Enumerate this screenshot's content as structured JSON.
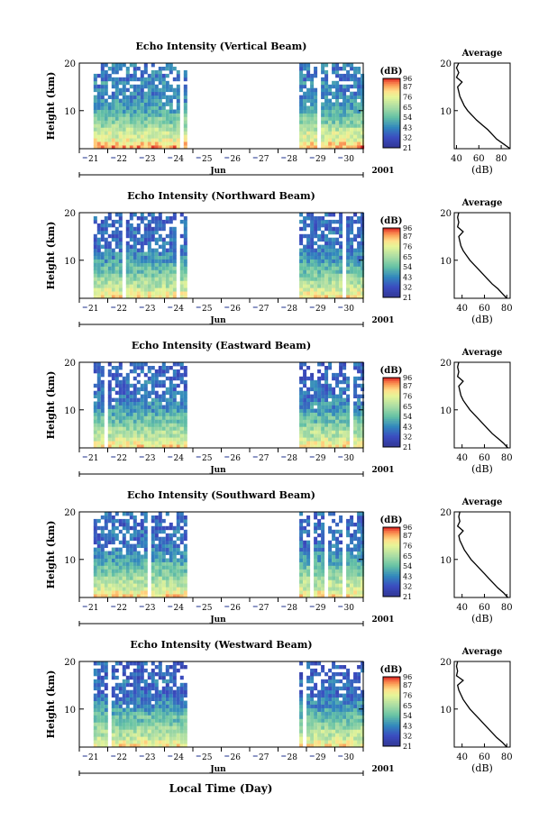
{
  "figure": {
    "xlabel": "Local Time (Day)",
    "month_label": "Jun",
    "year_label": "2001",
    "day_labels": [
      "21",
      "22",
      "23",
      "24",
      "25",
      "26",
      "27",
      "28",
      "29",
      "30"
    ],
    "height_ticks": [
      10,
      20
    ],
    "colorbar_unit": "(dB)",
    "colorbar_ticks": [
      96,
      87,
      76,
      65,
      54,
      43,
      32,
      21
    ],
    "colorbar_colors": [
      "#d7191c",
      "#f46d43",
      "#fdae61",
      "#fee08b",
      "#e6f598",
      "#abdda4",
      "#66c2a5",
      "#3288bd",
      "#3b4cc0",
      "#313695"
    ],
    "profile_title": "Average",
    "profile_xlabel": "(dB)",
    "ylabel": "Height (km)"
  },
  "chart_data": [
    {
      "type": "heatmap",
      "title": "Echo Intensity (Vertical Beam)",
      "xlabel": "Local Time (Day)",
      "ylabel": "Height (km)",
      "x_range": [
        "Jun 21",
        "Jul 01"
      ],
      "ylim": [
        2,
        20
      ],
      "zlim": [
        21,
        96
      ],
      "z_unit": "dB",
      "data_periods": [
        [
          "Jun 21 12:00",
          "Jun 24 18:00"
        ],
        [
          "Jun 28 18:00",
          "Jun 30 23:59"
        ]
      ],
      "profile": {
        "title": "Average",
        "xlabel": "(dB)",
        "xticks": [
          40,
          60,
          80
        ],
        "xlim": [
          38,
          88
        ],
        "ylim": [
          2,
          20
        ],
        "height": [
          2,
          3,
          4,
          5,
          6,
          7,
          8,
          9,
          10,
          11,
          12,
          13,
          14,
          15,
          16,
          17,
          18,
          19,
          20
        ],
        "value": [
          88,
          82,
          76,
          72,
          68,
          63,
          58,
          54,
          50,
          47,
          45,
          43,
          42,
          41,
          45,
          40,
          42,
          40,
          42
        ]
      }
    },
    {
      "type": "heatmap",
      "title": "Echo Intensity (Northward Beam)",
      "xlabel": "Local Time (Day)",
      "ylabel": "Height (km)",
      "x_range": [
        "Jun 21",
        "Jul 01"
      ],
      "ylim": [
        2,
        20
      ],
      "zlim": [
        21,
        96
      ],
      "z_unit": "dB",
      "data_periods": [
        [
          "Jun 21 12:00",
          "Jun 24 18:00"
        ],
        [
          "Jun 28 18:00",
          "Jun 30 23:59"
        ]
      ],
      "profile": {
        "title": "Average",
        "xlabel": "(dB)",
        "xticks": [
          40,
          60,
          80
        ],
        "xlim": [
          33,
          83
        ],
        "ylim": [
          2,
          20
        ],
        "height": [
          2,
          3,
          4,
          5,
          6,
          7,
          8,
          9,
          10,
          11,
          12,
          13,
          14,
          15,
          16,
          17,
          18,
          19,
          20
        ],
        "value": [
          80,
          76,
          72,
          67,
          63,
          59,
          55,
          51,
          47,
          44,
          41,
          39,
          38,
          37,
          41,
          36,
          37,
          36,
          37
        ]
      }
    },
    {
      "type": "heatmap",
      "title": "Echo Intensity (Eastward Beam)",
      "xlabel": "Local Time (Day)",
      "ylabel": "Height (km)",
      "x_range": [
        "Jun 21",
        "Jul 01"
      ],
      "ylim": [
        2,
        20
      ],
      "zlim": [
        21,
        96
      ],
      "z_unit": "dB",
      "data_periods": [
        [
          "Jun 21 12:00",
          "Jun 24 18:00"
        ],
        [
          "Jun 28 18:00",
          "Jun 30 23:59"
        ]
      ],
      "profile": {
        "title": "Average",
        "xlabel": "(dB)",
        "xticks": [
          40,
          60,
          80
        ],
        "xlim": [
          33,
          83
        ],
        "ylim": [
          2,
          20
        ],
        "height": [
          2,
          3,
          4,
          5,
          6,
          7,
          8,
          9,
          10,
          11,
          12,
          13,
          14,
          15,
          16,
          17,
          18,
          19,
          20
        ],
        "value": [
          81,
          77,
          72,
          67,
          63,
          59,
          55,
          51,
          47,
          44,
          41,
          39,
          38,
          37,
          41,
          36,
          37,
          36,
          37
        ]
      }
    },
    {
      "type": "heatmap",
      "title": "Echo Intensity (Southward Beam)",
      "xlabel": "Local Time (Day)",
      "ylabel": "Height (km)",
      "x_range": [
        "Jun 21",
        "Jul 01"
      ],
      "ylim": [
        2,
        20
      ],
      "zlim": [
        21,
        96
      ],
      "z_unit": "dB",
      "data_periods": [
        [
          "Jun 21 12:00",
          "Jun 24 18:00"
        ],
        [
          "Jun 28 18:00",
          "Jun 30 23:59"
        ]
      ],
      "profile": {
        "title": "Average",
        "xlabel": "(dB)",
        "xticks": [
          40,
          60,
          80
        ],
        "xlim": [
          33,
          83
        ],
        "ylim": [
          2,
          20
        ],
        "height": [
          2,
          3,
          4,
          5,
          6,
          7,
          8,
          9,
          10,
          11,
          12,
          13,
          14,
          15,
          16,
          17,
          18,
          19,
          20
        ],
        "value": [
          81,
          77,
          72,
          68,
          64,
          60,
          56,
          52,
          48,
          45,
          42,
          40,
          38,
          37,
          41,
          36,
          38,
          37,
          38
        ]
      }
    },
    {
      "type": "heatmap",
      "title": "Echo Intensity (Westward Beam)",
      "xlabel": "Local Time (Day)",
      "ylabel": "Height (km)",
      "x_range": [
        "Jun 21",
        "Jul 01"
      ],
      "ylim": [
        2,
        20
      ],
      "zlim": [
        21,
        96
      ],
      "z_unit": "dB",
      "data_periods": [
        [
          "Jun 21 12:00",
          "Jun 24 18:00"
        ],
        [
          "Jun 28 18:00",
          "Jun 30 23:59"
        ]
      ],
      "profile": {
        "title": "Average",
        "xlabel": "(dB)",
        "xticks": [
          40,
          60,
          80
        ],
        "xlim": [
          33,
          83
        ],
        "ylim": [
          2,
          20
        ],
        "height": [
          2,
          3,
          4,
          5,
          6,
          7,
          8,
          9,
          10,
          11,
          12,
          13,
          14,
          15,
          16,
          17,
          18,
          19,
          20
        ],
        "value": [
          80,
          76,
          71,
          67,
          63,
          59,
          55,
          51,
          47,
          44,
          41,
          39,
          37,
          36,
          41,
          35,
          36,
          35,
          36
        ]
      }
    }
  ]
}
